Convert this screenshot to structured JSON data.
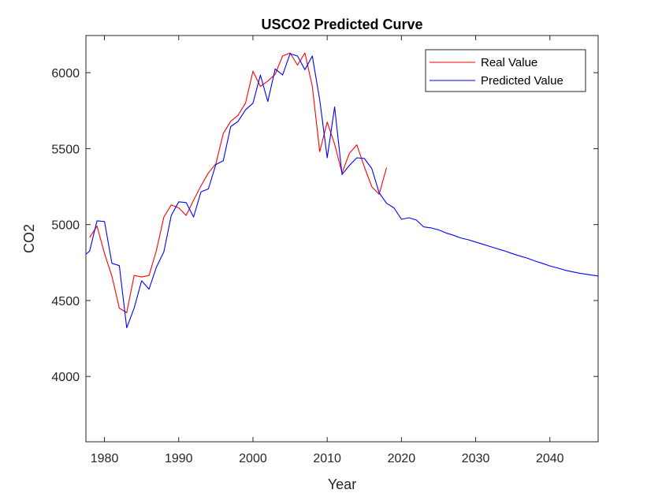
{
  "chart_data": {
    "type": "line",
    "title": "USCO2 Predicted Curve",
    "xlabel": "Year",
    "ylabel": "CO2",
    "xlim": [
      1977.5,
      2046.5
    ],
    "ylim": [
      3570,
      6245
    ],
    "xticks": [
      1980,
      1990,
      2000,
      2010,
      2020,
      2030,
      2040
    ],
    "yticks": [
      4000,
      4500,
      5000,
      5500,
      6000
    ],
    "grid": false,
    "legend_position": "top-right",
    "series": [
      {
        "name": "Real Value",
        "color": "#ff0000",
        "x": [
          1978,
          1979,
          1980,
          1981,
          1982,
          1983,
          1984,
          1985,
          1986,
          1987,
          1988,
          1989,
          1990,
          1991,
          1992,
          1993,
          1994,
          1995,
          1996,
          1997,
          1998,
          1999,
          2000,
          2001,
          2002,
          2003,
          2004,
          2005,
          2006,
          2007,
          2008,
          2009,
          2010,
          2011,
          2012,
          2013,
          2014,
          2015,
          2016,
          2017,
          2018
        ],
        "y": [
          4915,
          4990,
          4810,
          4660,
          4450,
          4420,
          4665,
          4655,
          4665,
          4830,
          5050,
          5130,
          5110,
          5060,
          5160,
          5255,
          5340,
          5400,
          5600,
          5680,
          5720,
          5800,
          6010,
          5910,
          5945,
          5990,
          6110,
          6130,
          6050,
          6130,
          5910,
          5480,
          5675,
          5530,
          5340,
          5470,
          5525,
          5380,
          5250,
          5200,
          5375
        ]
      },
      {
        "name": "Predicted Value",
        "color": "#0000ff",
        "x": [
          1977.5,
          1978,
          1979,
          1980,
          1981,
          1982,
          1983,
          1984,
          1985,
          1986,
          1987,
          1988,
          1989,
          1990,
          1991,
          1992,
          1993,
          1994,
          1995,
          1996,
          1997,
          1998,
          1999,
          2000,
          2001,
          2002,
          2003,
          2004,
          2005,
          2006,
          2007,
          2008,
          2009,
          2010,
          2011,
          2012,
          2013,
          2014,
          2015,
          2016,
          2017,
          2018,
          2019,
          2020,
          2021,
          2022,
          2023,
          2024,
          2025,
          2026,
          2027,
          2028,
          2029,
          2030,
          2031,
          2032,
          2033,
          2034,
          2035,
          2036,
          2037,
          2038,
          2039,
          2040,
          2041,
          2042,
          2043,
          2044,
          2045,
          2046,
          2046.5
        ],
        "y": [
          4805,
          4825,
          5025,
          5020,
          4745,
          4730,
          4320,
          4450,
          4630,
          4575,
          4720,
          4820,
          5060,
          5150,
          5145,
          5050,
          5215,
          5235,
          5395,
          5420,
          5645,
          5680,
          5755,
          5800,
          5985,
          5810,
          6025,
          5985,
          6125,
          6110,
          6020,
          6110,
          5820,
          5440,
          5775,
          5330,
          5390,
          5440,
          5435,
          5370,
          5210,
          5140,
          5110,
          5035,
          5045,
          5030,
          4985,
          4978,
          4965,
          4945,
          4930,
          4912,
          4900,
          4885,
          4870,
          4855,
          4840,
          4825,
          4808,
          4792,
          4778,
          4760,
          4745,
          4728,
          4715,
          4700,
          4690,
          4680,
          4672,
          4665,
          4662
        ]
      }
    ]
  }
}
